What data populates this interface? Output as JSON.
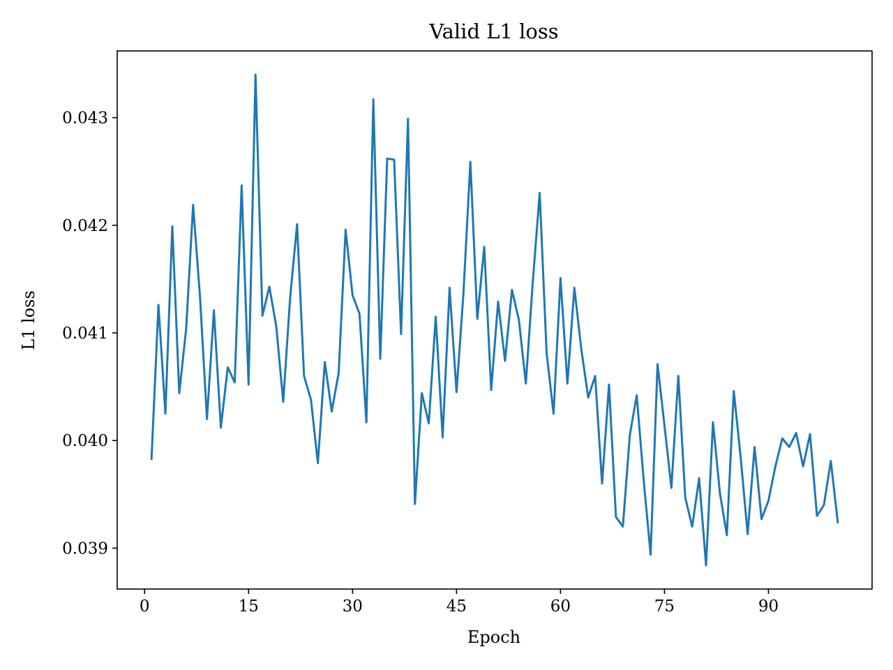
{
  "chart_data": {
    "type": "line",
    "title": "Valid L1 loss",
    "xlabel": "Epoch",
    "ylabel": "L1 loss",
    "xlim": [
      -3.95,
      104.95
    ],
    "ylim": [
      0.03862,
      0.04362
    ],
    "x_ticks": [
      0,
      15,
      30,
      45,
      60,
      75,
      90
    ],
    "x_tick_labels": [
      "0",
      "15",
      "30",
      "45",
      "60",
      "75",
      "90"
    ],
    "y_ticks": [
      0.039,
      0.04,
      0.041,
      0.042,
      0.043
    ],
    "y_tick_labels": [
      "0.039",
      "0.040",
      "0.041",
      "0.042",
      "0.043"
    ],
    "grid": false,
    "line_color": "#1f77b4",
    "series": [
      {
        "x": [
          1,
          2,
          3,
          4,
          5,
          6,
          7,
          8,
          9,
          10,
          11,
          12,
          13,
          14,
          15,
          16,
          17,
          18,
          19,
          20,
          21,
          22,
          23,
          24,
          25,
          26,
          27,
          28,
          29,
          30,
          31,
          32,
          33,
          34,
          35,
          36,
          37,
          38,
          39,
          40,
          41,
          42,
          43,
          44,
          45,
          46,
          47,
          48,
          49,
          50,
          51,
          52,
          53,
          54,
          55,
          56,
          57,
          58,
          59,
          60,
          61,
          62,
          63,
          64,
          65,
          66,
          67,
          68,
          69,
          70,
          71,
          72,
          73,
          74,
          75,
          76,
          77,
          78,
          79,
          80,
          81,
          82,
          83,
          84,
          85,
          86,
          87,
          88,
          89,
          90,
          91,
          92,
          93,
          94,
          95,
          96,
          97,
          98,
          99,
          100
        ],
        "values": [
          0.03983,
          0.04126,
          0.04025,
          0.04199,
          0.04044,
          0.04104,
          0.04219,
          0.04133,
          0.0402,
          0.04121,
          0.04012,
          0.04068,
          0.04054,
          0.04237,
          0.04052,
          0.0434,
          0.04116,
          0.04143,
          0.04106,
          0.04036,
          0.04133,
          0.04201,
          0.0406,
          0.04038,
          0.03979,
          0.04073,
          0.04027,
          0.04063,
          0.04196,
          0.04135,
          0.04118,
          0.04017,
          0.04317,
          0.04076,
          0.04262,
          0.04261,
          0.04099,
          0.04299,
          0.03941,
          0.04044,
          0.04016,
          0.04115,
          0.04003,
          0.04142,
          0.04045,
          0.04137,
          0.04259,
          0.04113,
          0.0418,
          0.04047,
          0.04129,
          0.04074,
          0.0414,
          0.04112,
          0.04053,
          0.04147,
          0.0423,
          0.04081,
          0.04025,
          0.04151,
          0.04053,
          0.04142,
          0.04085,
          0.0404,
          0.0406,
          0.0396,
          0.04052,
          0.03929,
          0.0392,
          0.04005,
          0.04042,
          0.03963,
          0.03894,
          0.04071,
          0.04014,
          0.03956,
          0.0406,
          0.03947,
          0.0392,
          0.03965,
          0.03884,
          0.04017,
          0.03951,
          0.03912,
          0.04046,
          0.03984,
          0.03913,
          0.03994,
          0.03927,
          0.03944,
          0.03976,
          0.04002,
          0.03994,
          0.04007,
          0.03976,
          0.04006,
          0.0393,
          0.0394,
          0.03981,
          0.03924
        ]
      }
    ]
  }
}
